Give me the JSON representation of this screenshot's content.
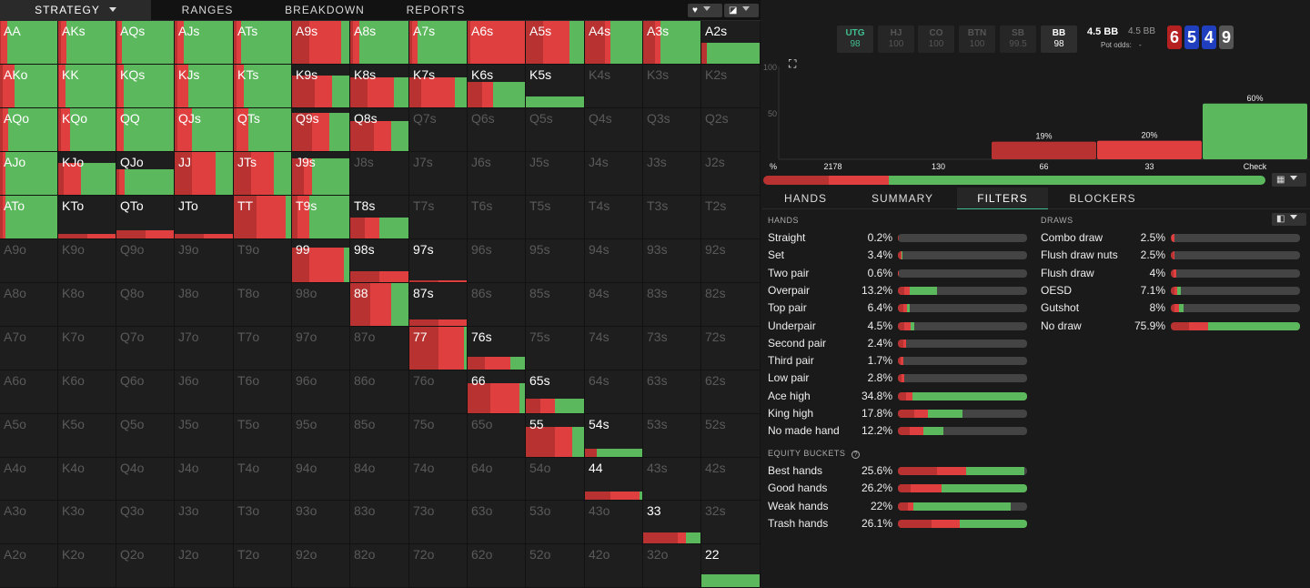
{
  "nav": {
    "tabs": [
      "STRATEGY",
      "RANGES",
      "BREAKDOWN",
      "REPORTS"
    ]
  },
  "colors": {
    "green": "#5bb85d",
    "red": "#e03f3f",
    "darkred": "#b83232",
    "empty": "#1e1e1e"
  },
  "matrix": {
    "rows": [
      [
        "AA",
        "AKs",
        "AQs",
        "AJs",
        "ATs",
        "A9s",
        "A8s",
        "A7s",
        "A6s",
        "A5s",
        "A4s",
        "A3s",
        "A2s"
      ],
      [
        "AKo",
        "KK",
        "KQs",
        "KJs",
        "KTs",
        "K9s",
        "K8s",
        "K7s",
        "K6s",
        "K5s",
        "K4s",
        "K3s",
        "K2s"
      ],
      [
        "AQo",
        "KQo",
        "QQ",
        "QJs",
        "QTs",
        "Q9s",
        "Q8s",
        "Q7s",
        "Q6s",
        "Q5s",
        "Q4s",
        "Q3s",
        "Q2s"
      ],
      [
        "AJo",
        "KJo",
        "QJo",
        "JJ",
        "JTs",
        "J9s",
        "J8s",
        "J7s",
        "J6s",
        "J5s",
        "J4s",
        "J3s",
        "J2s"
      ],
      [
        "ATo",
        "KTo",
        "QTo",
        "JTo",
        "TT",
        "T9s",
        "T8s",
        "T7s",
        "T6s",
        "T5s",
        "T4s",
        "T3s",
        "T2s"
      ],
      [
        "A9o",
        "K9o",
        "Q9o",
        "J9o",
        "T9o",
        "99",
        "98s",
        "97s",
        "96s",
        "95s",
        "94s",
        "93s",
        "92s"
      ],
      [
        "A8o",
        "K8o",
        "Q8o",
        "J8o",
        "T8o",
        "98o",
        "88",
        "87s",
        "86s",
        "85s",
        "84s",
        "83s",
        "82s"
      ],
      [
        "A7o",
        "K7o",
        "Q7o",
        "J7o",
        "T7o",
        "97o",
        "87o",
        "77",
        "76s",
        "75s",
        "74s",
        "73s",
        "72s"
      ],
      [
        "A6o",
        "K6o",
        "Q6o",
        "J6o",
        "T6o",
        "96o",
        "86o",
        "76o",
        "66",
        "65s",
        "64s",
        "63s",
        "62s"
      ],
      [
        "A5o",
        "K5o",
        "Q5o",
        "J5o",
        "T5o",
        "95o",
        "85o",
        "75o",
        "65o",
        "55",
        "54s",
        "53s",
        "52s"
      ],
      [
        "A4o",
        "K4o",
        "Q4o",
        "J4o",
        "T4o",
        "94o",
        "84o",
        "74o",
        "64o",
        "54o",
        "44",
        "43s",
        "42s"
      ],
      [
        "A3o",
        "K3o",
        "Q3o",
        "J3o",
        "T3o",
        "93o",
        "83o",
        "73o",
        "63o",
        "53o",
        "43o",
        "33",
        "32s"
      ],
      [
        "A2o",
        "K2o",
        "Q2o",
        "J2o",
        "T2o",
        "92o",
        "82o",
        "72o",
        "62o",
        "52o",
        "42o",
        "32o",
        "22"
      ]
    ],
    "cells": {
      "AA": [
        1,
        0.02,
        0.1,
        0.88
      ],
      "AKs": [
        1,
        0.04,
        0.1,
        0.86
      ],
      "AQs": [
        1,
        0.03,
        0.06,
        0.91
      ],
      "AJs": [
        1,
        0.04,
        0.12,
        0.84
      ],
      "ATs": [
        1,
        0.04,
        0.08,
        0.88
      ],
      "A9s": [
        1,
        0.3,
        0.55,
        0.15
      ],
      "A8s": [
        1,
        0.05,
        0.1,
        0.85
      ],
      "A7s": [
        1,
        0.05,
        0.1,
        0.85
      ],
      "A6s": [
        1,
        0.05,
        0.95,
        0
      ],
      "A5s": [
        1,
        0.3,
        0.45,
        0.25
      ],
      "A4s": [
        1,
        0.35,
        0.1,
        0.55
      ],
      "A3s": [
        1,
        0.2,
        0.1,
        0.7
      ],
      "A2s": [
        0.5,
        0.1,
        0,
        0.9
      ],
      "AKo": [
        1,
        0.05,
        0.2,
        0.75
      ],
      "KK": [
        1,
        0.02,
        0.1,
        0.88
      ],
      "KQs": [
        1,
        0.03,
        0.1,
        0.87
      ],
      "KJs": [
        1,
        0.05,
        0.18,
        0.77
      ],
      "KTs": [
        1,
        0.05,
        0.12,
        0.83
      ],
      "K9s": [
        0.75,
        0.4,
        0.3,
        0.3
      ],
      "K8s": [
        0.7,
        0.3,
        0.45,
        0.25
      ],
      "K7s": [
        0.7,
        0.2,
        0.6,
        0.2
      ],
      "K6s": [
        0.6,
        0.25,
        0.2,
        0.55
      ],
      "K5s": [
        0.25,
        0,
        0,
        1
      ],
      "AQo": [
        1,
        0.05,
        0.1,
        0.85
      ],
      "KQo": [
        1,
        0.05,
        0.15,
        0.8
      ],
      "QQ": [
        1,
        0.02,
        0.1,
        0.88
      ],
      "QJs": [
        1,
        0.05,
        0.25,
        0.7
      ],
      "QTs": [
        1,
        0.05,
        0.2,
        0.75
      ],
      "Q9s": [
        0.9,
        0.35,
        0.3,
        0.35
      ],
      "Q8s": [
        0.7,
        0.4,
        0.3,
        0.3
      ],
      "AJo": [
        1,
        0.05,
        0.05,
        0.9
      ],
      "KJo": [
        0.75,
        0.1,
        0.3,
        0.6
      ],
      "QJo": [
        0.6,
        0.05,
        0.1,
        0.85
      ],
      "JJ": [
        1,
        0.3,
        0.4,
        0.3
      ],
      "JTs": [
        1,
        0.3,
        0.4,
        0.3
      ],
      "J9s": [
        0.85,
        0.2,
        0.15,
        0.65
      ],
      "ATo": [
        1,
        0.05,
        0.05,
        0.9
      ],
      "KTo": [
        0.1,
        0.5,
        0.5,
        0
      ],
      "QTo": [
        0.2,
        0.5,
        0.5,
        0
      ],
      "JTo": [
        0.1,
        0.5,
        0.5,
        0
      ],
      "TT": [
        1,
        0.4,
        0.5,
        0.1
      ],
      "T9s": [
        1,
        0.1,
        0.2,
        0.7
      ],
      "T8s": [
        0.5,
        0.25,
        0.25,
        0.5
      ],
      "99": [
        0.8,
        0.3,
        0.6,
        0.1
      ],
      "98s": [
        0.25,
        0.5,
        0.5,
        0
      ],
      "97s": [
        0.05,
        0.5,
        0.5,
        0
      ],
      "88": [
        1,
        0.35,
        0.35,
        0.3
      ],
      "87s": [
        0.15,
        0.5,
        0.5,
        0
      ],
      "77": [
        1,
        0.5,
        0.45,
        0.05
      ],
      "76s": [
        0.3,
        0.3,
        0.45,
        0.25
      ],
      "66": [
        0.7,
        0.4,
        0.5,
        0.1
      ],
      "65s": [
        0.35,
        0.25,
        0.25,
        0.5
      ],
      "55": [
        0.7,
        0.5,
        0.3,
        0.2
      ],
      "54s": [
        0.2,
        0.2,
        0,
        0.8
      ],
      "44": [
        0.2,
        0.45,
        0.5,
        0.05
      ],
      "33": [
        0.25,
        0.6,
        0.15,
        0.25
      ],
      "22": [
        0.3,
        0,
        0,
        1
      ]
    }
  },
  "header": {
    "positions": [
      {
        "name": "UTG",
        "stack": "98"
      },
      {
        "name": "HJ",
        "stack": "100"
      },
      {
        "name": "CO",
        "stack": "100"
      },
      {
        "name": "BTN",
        "stack": "100"
      },
      {
        "name": "SB",
        "stack": "99.5"
      },
      {
        "name": "BB",
        "stack": "98"
      }
    ],
    "pot": "4.5 BB",
    "pot_small": "4.5 BB",
    "pot_odds_label": "Pot odds:",
    "pot_odds_value": "-",
    "board": [
      {
        "rank": "6",
        "color": "#b52020"
      },
      {
        "rank": "5",
        "color": "#1f3fbf"
      },
      {
        "rank": "4",
        "color": "#1f3fbf"
      },
      {
        "rank": "9",
        "color": "#555"
      }
    ]
  },
  "chart_data": {
    "type": "bar",
    "categories": [
      "2178",
      "130",
      "66",
      "33",
      "Check"
    ],
    "values": [
      0,
      0,
      19,
      20,
      60
    ],
    "labels": [
      "",
      "",
      "19%",
      "20%",
      "60%"
    ],
    "ylim": [
      0,
      100
    ],
    "yticks": [
      "100",
      "50"
    ],
    "x_prefix": "%",
    "colors": [
      "#b83232",
      "#b83232",
      "#b83232",
      "#e03f3f",
      "#5bb85d"
    ]
  },
  "summary_bar": [
    0.13,
    0.12,
    0.75
  ],
  "subtabs": [
    "HANDS",
    "SUMMARY",
    "FILTERS",
    "BLOCKERS"
  ],
  "filters": {
    "hands_title": "HANDS",
    "draws_title": "DRAWS",
    "equity_title": "EQUITY BUCKETS",
    "hands": [
      {
        "label": "Straight",
        "pct": "0.2%",
        "bar": [
          0.002,
          0,
          0
        ]
      },
      {
        "label": "Set",
        "pct": "3.4%",
        "bar": [
          0.02,
          0.01,
          0.004
        ]
      },
      {
        "label": "Two pair",
        "pct": "0.6%",
        "bar": [
          0.003,
          0.003,
          0
        ]
      },
      {
        "label": "Overpair",
        "pct": "13.2%",
        "bar": [
          0.05,
          0.04,
          0.21
        ]
      },
      {
        "label": "Top pair",
        "pct": "6.4%",
        "bar": [
          0.04,
          0.03,
          0.02
        ]
      },
      {
        "label": "Underpair",
        "pct": "4.5%",
        "bar": [
          0.05,
          0.05,
          0.03
        ]
      },
      {
        "label": "Second pair",
        "pct": "2.4%",
        "bar": [
          0.04,
          0.02,
          0
        ]
      },
      {
        "label": "Third pair",
        "pct": "1.7%",
        "bar": [
          0.02,
          0.02,
          0
        ]
      },
      {
        "label": "Low pair",
        "pct": "2.8%",
        "bar": [
          0.03,
          0.02,
          0
        ]
      },
      {
        "label": "Ace high",
        "pct": "34.8%",
        "bar": [
          0.06,
          0.05,
          0.89
        ]
      },
      {
        "label": "King high",
        "pct": "17.8%",
        "bar": [
          0.13,
          0.1,
          0.27
        ]
      },
      {
        "label": "No made hand",
        "pct": "12.2%",
        "bar": [
          0.09,
          0.11,
          0.15
        ]
      }
    ],
    "draws": [
      {
        "label": "Combo draw",
        "pct": "2.5%",
        "bar": [
          0.01,
          0.02,
          0
        ]
      },
      {
        "label": "Flush draw nuts",
        "pct": "2.5%",
        "bar": [
          0.02,
          0.01,
          0
        ]
      },
      {
        "label": "Flush draw",
        "pct": "4%",
        "bar": [
          0.02,
          0.02,
          0
        ]
      },
      {
        "label": "OESD",
        "pct": "7.1%",
        "bar": [
          0.03,
          0.02,
          0.03
        ]
      },
      {
        "label": "Gutshot",
        "pct": "8%",
        "bar": [
          0.03,
          0.03,
          0.04
        ]
      },
      {
        "label": "No draw",
        "pct": "75.9%",
        "bar": [
          0.14,
          0.15,
          0.71
        ]
      }
    ],
    "equity": [
      {
        "label": "Best hands",
        "pct": "25.6%",
        "bar": [
          0.3,
          0.23,
          0.45
        ]
      },
      {
        "label": "Good hands",
        "pct": "26.2%",
        "bar": [
          0.1,
          0.24,
          0.66
        ]
      },
      {
        "label": "Weak hands",
        "pct": "22%",
        "bar": [
          0.08,
          0.04,
          0.75
        ]
      },
      {
        "label": "Trash hands",
        "pct": "26.1%",
        "bar": [
          0.26,
          0.22,
          0.52
        ]
      }
    ]
  }
}
